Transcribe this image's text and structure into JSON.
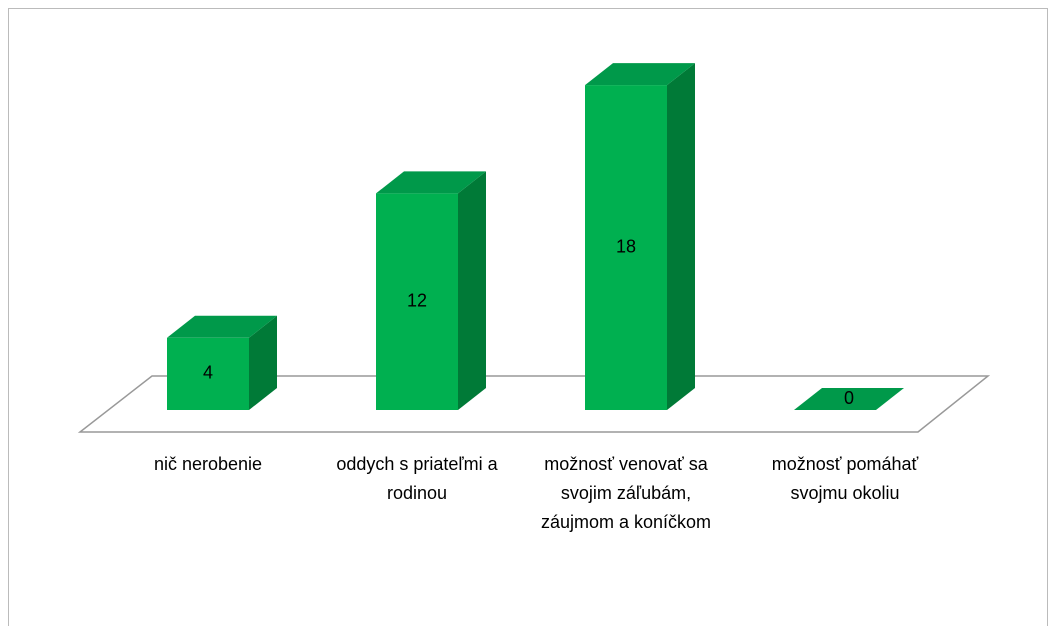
{
  "chart_data": {
    "type": "bar3d",
    "categories": [
      "nič nerobenie",
      "oddych s priateľmi a rodinou",
      "možnosť venovať sa svojim záľubám, záujmom a koníčkom",
      "možnosť pomáhať svojmu okoliu"
    ],
    "values": [
      4,
      12,
      18,
      0
    ],
    "color": "#00b050",
    "ylim": [
      0,
      20
    ]
  }
}
